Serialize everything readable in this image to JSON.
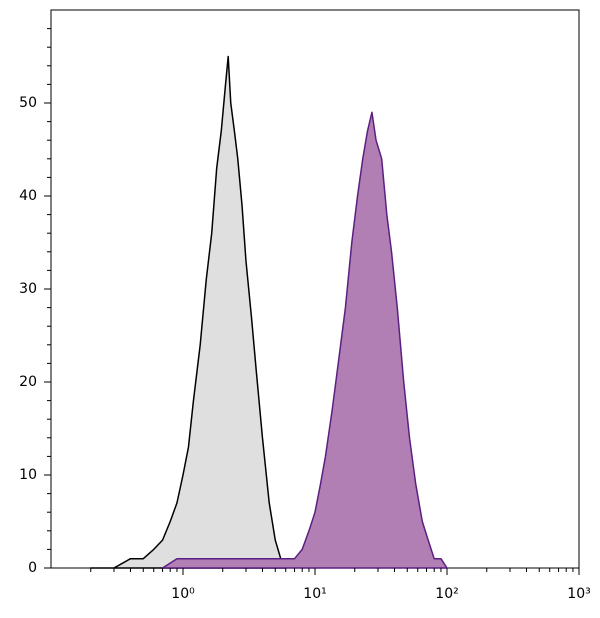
{
  "chart_data": {
    "type": "area",
    "xscale": "log",
    "xlim": [
      0.1,
      1000
    ],
    "ylim": [
      0,
      60
    ],
    "xticks": [
      {
        "value": 1,
        "label": "10⁰"
      },
      {
        "value": 10,
        "label": "10¹"
      },
      {
        "value": 100,
        "label": "10²"
      },
      {
        "value": 1000,
        "label": "10³"
      }
    ],
    "xminorticks": [
      0.2,
      0.3,
      0.4,
      0.5,
      0.6,
      0.7,
      0.8,
      0.9,
      2,
      3,
      4,
      5,
      6,
      7,
      8,
      9,
      20,
      30,
      40,
      50,
      60,
      70,
      80,
      90,
      200,
      300,
      400,
      500,
      600,
      700,
      800,
      900
    ],
    "yticks": [
      0,
      10,
      20,
      30,
      40,
      50
    ],
    "yminorticks": [
      2,
      4,
      6,
      8,
      12,
      14,
      16,
      18,
      22,
      24,
      26,
      28,
      32,
      34,
      36,
      38,
      42,
      44,
      46,
      48,
      52,
      54,
      56,
      58
    ],
    "series": [
      {
        "color": "#e0dfe0",
        "line_color": "#000000",
        "x": [
          0.2,
          0.3,
          0.4,
          0.5,
          0.6,
          0.7,
          0.8,
          0.9,
          1.0,
          1.1,
          1.2,
          1.35,
          1.5,
          1.65,
          1.8,
          1.95,
          2.1,
          2.2,
          2.3,
          2.45,
          2.6,
          2.8,
          3.0,
          3.3,
          3.6,
          4.0,
          4.5,
          5.0,
          5.5,
          6.0
        ],
        "values": [
          0,
          0,
          1,
          1,
          2,
          3,
          5,
          7,
          10,
          13,
          18,
          24,
          31,
          36,
          43,
          47,
          52,
          55,
          50,
          47,
          44,
          39,
          33,
          27,
          21,
          14,
          7,
          3,
          1,
          0
        ]
      },
      {
        "color": "#b27fb5",
        "line_color": "#5b1f82",
        "x": [
          0.7,
          0.9,
          1.5,
          2.5,
          4,
          6,
          7,
          8,
          9,
          10,
          11,
          12,
          13.5,
          15,
          17,
          19,
          21,
          23,
          25,
          27,
          29,
          32,
          35,
          38,
          42,
          47,
          52,
          58,
          65,
          72,
          80,
          90,
          100
        ],
        "values": [
          0,
          1,
          1,
          1,
          1,
          1,
          1,
          2,
          4,
          6,
          9,
          12,
          17,
          22,
          28,
          35,
          40,
          44,
          47,
          49,
          46,
          44,
          38,
          34,
          28,
          20,
          14,
          9,
          5,
          3,
          1,
          1,
          0
        ]
      }
    ]
  }
}
